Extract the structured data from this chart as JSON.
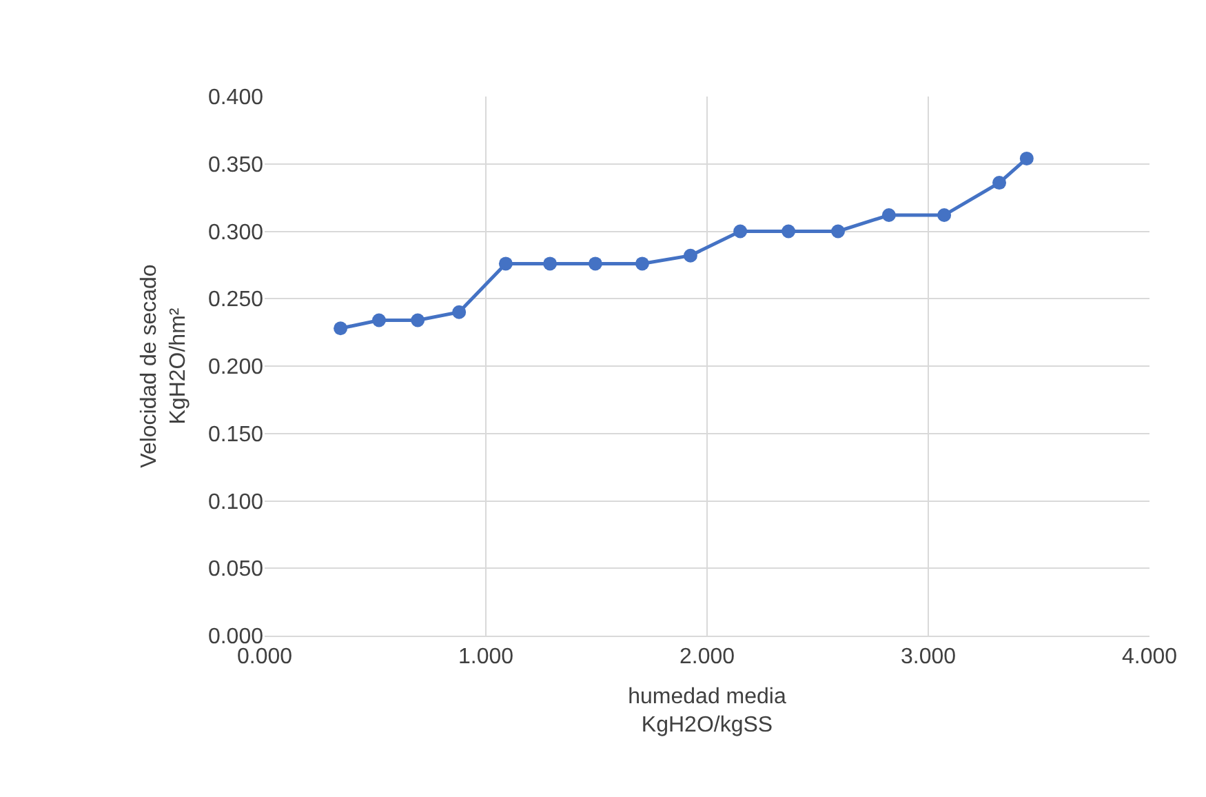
{
  "chart_data": {
    "type": "line",
    "xlabel": "humedad media\nKgH2O/kgSS",
    "ylabel": "Velocidad de secado\nKgH2O/hm²",
    "x": [
      0.343,
      0.517,
      0.692,
      0.879,
      1.09,
      1.29,
      1.495,
      1.707,
      1.925,
      2.15,
      2.368,
      2.592,
      2.822,
      3.072,
      3.321,
      3.445
    ],
    "series": [
      {
        "color": "#4472c4",
        "values": [
          0.228,
          0.234,
          0.234,
          0.24,
          0.276,
          0.276,
          0.276,
          0.276,
          0.282,
          0.3,
          0.3,
          0.3,
          0.312,
          0.312,
          0.336,
          0.354
        ]
      }
    ],
    "xlim": [
      0,
      4
    ],
    "xticks": [
      {
        "value": 0,
        "label": "0.000"
      },
      {
        "value": 1,
        "label": "1.000"
      },
      {
        "value": 2,
        "label": "2.000"
      },
      {
        "value": 3,
        "label": "3.000"
      },
      {
        "value": 4,
        "label": "4.000"
      }
    ],
    "ylim": [
      0,
      0.4
    ],
    "yticks": [
      {
        "value": 0,
        "label": "0.000"
      },
      {
        "value": 0.05,
        "label": "0.050"
      },
      {
        "value": 0.1,
        "label": "0.100"
      },
      {
        "value": 0.15,
        "label": "0.150"
      },
      {
        "value": 0.2,
        "label": "0.200"
      },
      {
        "value": 0.25,
        "label": "0.250"
      },
      {
        "value": 0.3,
        "label": "0.300"
      },
      {
        "value": 0.35,
        "label": "0.350"
      },
      {
        "value": 0.4,
        "label": "0.400"
      }
    ],
    "grid": true,
    "marker": "circle",
    "line_style": "solid"
  }
}
